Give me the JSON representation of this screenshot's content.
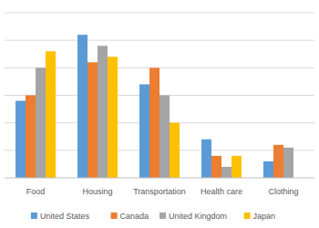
{
  "chart_data": {
    "type": "bar",
    "categories": [
      "Food",
      "Housing",
      "Transportation",
      "Health care",
      "Clothing"
    ],
    "series": [
      {
        "name": "United States",
        "color": "#5b9bd5",
        "values": [
          14,
          26,
          17,
          7,
          3
        ]
      },
      {
        "name": "Canada",
        "color": "#ed7d31",
        "values": [
          15,
          21,
          20,
          4,
          6
        ]
      },
      {
        "name": "United Kingdom",
        "color": "#a5a5a5",
        "values": [
          20,
          24,
          15,
          2,
          5.5
        ]
      },
      {
        "name": "Japan",
        "color": "#ffc000",
        "values": [
          23,
          22,
          10,
          4,
          null
        ]
      }
    ],
    "ylim": [
      0,
      30
    ],
    "yticks": [
      0,
      5,
      10,
      15,
      20,
      25,
      30
    ],
    "grid": true,
    "legend": "bottom",
    "tick_labels": "x"
  }
}
